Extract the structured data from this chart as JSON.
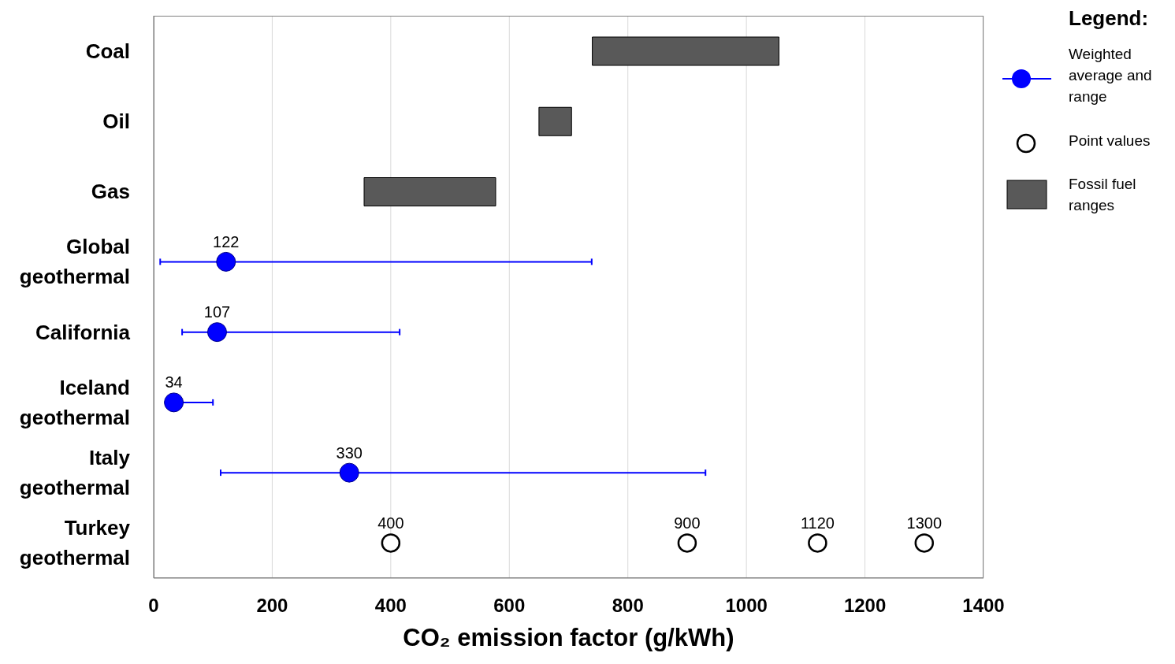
{
  "chart_data": {
    "type": "bar",
    "orientation": "horizontal",
    "xlabel": "CO₂ emission factor (g/kWh)",
    "legend_title": "Legend:",
    "categories": [
      "Coal",
      "Oil",
      "Gas",
      "Global geothermal",
      "California",
      "Iceland geothermal",
      "Italy geothermal",
      "Turkey geothermal"
    ],
    "series": [
      {
        "name": "Weighted average and range",
        "type": "scatter",
        "color": "#0000ff",
        "marker": "circle",
        "values": [
          null,
          null,
          null,
          122,
          107,
          34,
          330,
          null
        ],
        "errors": [
          null,
          null,
          null,
          [
            11,
            739
          ],
          [
            48,
            415
          ],
          [
            34,
            100
          ],
          [
            113,
            931
          ],
          null
        ],
        "data_labels": true
      },
      {
        "name": "Point values",
        "type": "scatter",
        "color": "#000000",
        "marker": "circle",
        "x": [
          "Turkey geothermal",
          "Turkey geothermal",
          "Turkey geothermal",
          "Turkey geothermal"
        ],
        "values": [
          400,
          900,
          1120,
          1300
        ],
        "data_labels": true
      },
      {
        "name": "Fossil fuel ranges",
        "color": "#595959",
        "base": [
          740,
          650,
          355,
          null,
          null,
          null,
          null,
          null
        ],
        "values": [
          315,
          55,
          222,
          null,
          null,
          null,
          null,
          null
        ]
      }
    ],
    "xlim": [
      0,
      1400
    ],
    "xticks": [
      0,
      200,
      400,
      600,
      800,
      1000,
      1200,
      1400
    ],
    "grid": "x",
    "legend": "right"
  }
}
